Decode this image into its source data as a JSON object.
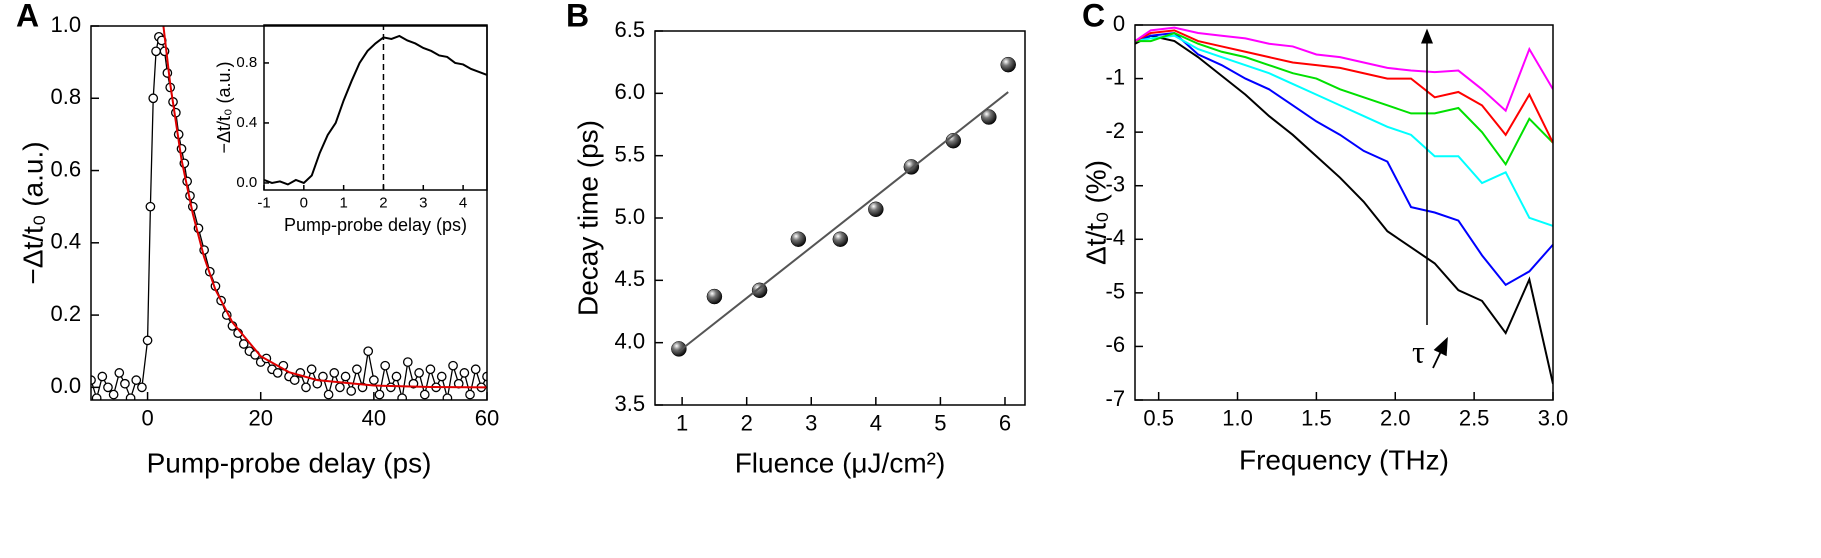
{
  "chart_data": [
    {
      "type": "scatter",
      "label": "A",
      "xlabel": "Pump-probe delay (ps)",
      "ylabel": "−Δt/t₀ (a.u.)",
      "xlim": [
        -10,
        60
      ],
      "ylim": [
        -0.035,
        1.0
      ],
      "xticks": [
        0,
        20,
        40,
        60
      ],
      "yticks": [
        {
          "value": 0,
          "label": "0.0"
        },
        0.2,
        0.4,
        0.6,
        0.8,
        {
          "value": 1,
          "label": "1.0"
        }
      ],
      "series": [
        {
          "color": "#000000",
          "marker": "circle",
          "connect": true,
          "x": [
            -10,
            -9,
            -8,
            -7,
            -6,
            -5,
            -4,
            -3,
            -2,
            -1,
            0,
            0.5,
            1,
            1.5,
            2,
            2.5,
            3,
            3.5,
            4,
            4.5,
            5,
            5.5,
            6,
            6.5,
            7,
            7.5,
            8,
            9,
            10,
            11,
            12,
            13,
            14,
            15,
            16,
            17,
            18,
            19,
            20,
            21,
            22,
            23,
            24,
            25,
            26,
            27,
            28,
            29,
            30,
            31,
            32,
            33,
            34,
            35,
            36,
            37,
            38,
            39,
            40,
            41,
            42,
            43,
            44,
            45,
            46,
            47,
            48,
            49,
            50,
            51,
            52,
            53,
            54,
            55,
            56,
            57,
            58,
            59,
            60
          ],
          "values": [
            0.02,
            -0.03,
            0.03,
            0,
            -0.02,
            0.04,
            0.01,
            -0.03,
            0.02,
            0,
            0.13,
            0.5,
            0.8,
            0.93,
            0.97,
            0.96,
            0.93,
            0.87,
            0.83,
            0.79,
            0.76,
            0.7,
            0.66,
            0.62,
            0.57,
            0.53,
            0.5,
            0.44,
            0.38,
            0.32,
            0.28,
            0.24,
            0.2,
            0.17,
            0.15,
            0.12,
            0.1,
            0.09,
            0.07,
            0.08,
            0.05,
            0.04,
            0.06,
            0.03,
            0.02,
            0.04,
            0,
            0.05,
            0.01,
            0.03,
            -0.02,
            0.04,
            0,
            0.03,
            -0.01,
            0.05,
            0,
            0.1,
            0.02,
            -0.02,
            0.06,
            0,
            0.03,
            -0.03,
            0.07,
            0.01,
            0.04,
            -0.02,
            0.05,
            0,
            0.03,
            -0.03,
            0.06,
            0.01,
            0.04,
            -0.02,
            0.05,
            0,
            0.03
          ]
        },
        {
          "color": "#e00000",
          "x": [
            2.8,
            4,
            6,
            8,
            10,
            12,
            15,
            20,
            25,
            30,
            40,
            50,
            60
          ],
          "values": [
            1.0,
            0.84,
            0.63,
            0.48,
            0.36,
            0.27,
            0.18,
            0.086,
            0.042,
            0.02,
            0.005,
            0.001,
            0
          ]
        }
      ]
    },
    {
      "type": "line",
      "xlabel": "Pump-probe delay (ps)",
      "ylabel": "−Δt/t₀ (a.u.)",
      "xlim": [
        -1,
        4.6
      ],
      "ylim": [
        -0.047,
        1.053
      ],
      "xticks": [
        -1,
        0,
        1,
        2,
        3,
        4
      ],
      "yticks": [
        {
          "value": 0,
          "label": "0.0"
        },
        0.4,
        0.8
      ],
      "vline": 2,
      "series": [
        {
          "color": "#000000",
          "x": [
            -1,
            -0.8,
            -0.6,
            -0.4,
            -0.2,
            0,
            0.2,
            0.4,
            0.6,
            0.8,
            1,
            1.2,
            1.4,
            1.6,
            1.8,
            2,
            2.2,
            2.4,
            2.6,
            2.8,
            3,
            3.2,
            3.4,
            3.6,
            3.8,
            4,
            4.2,
            4.4,
            4.6
          ],
          "values": [
            0.02,
            0,
            0.01,
            -0.01,
            0.02,
            0,
            0.05,
            0.2,
            0.32,
            0.4,
            0.55,
            0.68,
            0.8,
            0.88,
            0.93,
            0.97,
            0.96,
            0.98,
            0.95,
            0.93,
            0.9,
            0.88,
            0.85,
            0.84,
            0.8,
            0.79,
            0.76,
            0.74,
            0.72
          ]
        }
      ]
    },
    {
      "type": "scatter",
      "label": "B",
      "xlabel": "Fluence (μJ/cm²)",
      "ylabel": "Decay time (ps)",
      "xlim": [
        0.58,
        6.31
      ],
      "ylim": [
        3.5,
        6.5
      ],
      "xticks": [
        1,
        2,
        3,
        4,
        5,
        6
      ],
      "yticks": [
        3.5,
        {
          "value": 4,
          "label": "4.0"
        },
        4.5,
        {
          "value": 5,
          "label": "5.0"
        },
        5.5,
        {
          "value": 6,
          "label": "6.0"
        },
        6.5
      ],
      "series": [
        {
          "color": "#000000",
          "marker": "sphere",
          "x": [
            0.95,
            1.5,
            2.2,
            2.8,
            3.45,
            4,
            4.55,
            5.2,
            5.75,
            6.05
          ],
          "values": [
            3.95,
            4.37,
            4.42,
            4.83,
            4.83,
            5.07,
            5.41,
            5.62,
            5.81,
            6.23
          ]
        },
        {
          "color": "#555555",
          "x": [
            0.95,
            6.05
          ],
          "values": [
            3.93,
            6.01
          ]
        }
      ]
    },
    {
      "type": "line",
      "label": "C",
      "xlabel": "Frequency (THz)",
      "ylabel": "Δt/t₀ (%)",
      "annotation": "τ",
      "xlim": [
        0.35,
        3.0
      ],
      "ylim": [
        -7,
        0
      ],
      "xticks": [
        0.5,
        {
          "value": 1,
          "label": "1.0"
        },
        1.5,
        {
          "value": 2,
          "label": "2.0"
        },
        2.5,
        {
          "value": 3,
          "label": "3.0"
        }
      ],
      "yticks": [
        0,
        -1,
        -2,
        -3,
        -4,
        -5,
        -6,
        -7
      ],
      "x": [
        0.35,
        0.45,
        0.6,
        0.75,
        0.9,
        1.05,
        1.2,
        1.35,
        1.5,
        1.65,
        1.8,
        1.95,
        2.1,
        2.25,
        2.4,
        2.55,
        2.7,
        2.85,
        3.0
      ],
      "series": [
        {
          "color": "#000000",
          "values": [
            -0.35,
            -0.2,
            -0.3,
            -0.6,
            -0.95,
            -1.3,
            -1.7,
            -2.05,
            -2.45,
            -2.85,
            -3.3,
            -3.85,
            -4.15,
            -4.45,
            -4.95,
            -5.15,
            -5.75,
            -4.75,
            -6.7
          ]
        },
        {
          "color": "#0000ff",
          "values": [
            -0.3,
            -0.2,
            -0.15,
            -0.55,
            -0.75,
            -1.0,
            -1.2,
            -1.5,
            -1.8,
            -2.05,
            -2.35,
            -2.55,
            -3.4,
            -3.5,
            -3.65,
            -4.3,
            -4.85,
            -4.6,
            -4.1
          ]
        },
        {
          "color": "#00ffff",
          "values": [
            -0.3,
            -0.25,
            -0.2,
            -0.45,
            -0.6,
            -0.75,
            -0.9,
            -1.1,
            -1.3,
            -1.5,
            -1.7,
            -1.9,
            -2.05,
            -2.45,
            -2.45,
            -2.95,
            -2.75,
            -3.6,
            -3.75
          ]
        },
        {
          "color": "#00e000",
          "values": [
            -0.3,
            -0.3,
            -0.15,
            -0.35,
            -0.5,
            -0.6,
            -0.75,
            -0.9,
            -1.0,
            -1.2,
            -1.35,
            -1.5,
            -1.65,
            -1.65,
            -1.55,
            -2.0,
            -2.6,
            -1.75,
            -2.2
          ]
        },
        {
          "color": "#ff0000",
          "values": [
            -0.3,
            -0.15,
            -0.1,
            -0.3,
            -0.4,
            -0.5,
            -0.6,
            -0.7,
            -0.75,
            -0.8,
            -0.9,
            -1.0,
            -1.0,
            -1.35,
            -1.25,
            -1.5,
            -2.05,
            -1.3,
            -2.2
          ]
        },
        {
          "color": "#ff00ff",
          "values": [
            -0.3,
            -0.1,
            -0.05,
            -0.15,
            -0.2,
            -0.25,
            -0.35,
            -0.4,
            -0.55,
            -0.6,
            -0.7,
            -0.8,
            -0.85,
            -0.88,
            -0.85,
            -1.2,
            -1.6,
            -0.45,
            -1.2
          ]
        }
      ]
    }
  ]
}
